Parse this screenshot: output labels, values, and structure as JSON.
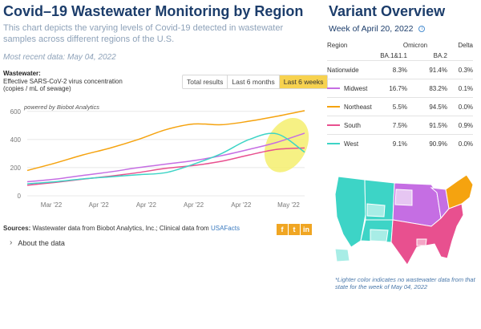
{
  "title": "Covid–19 Wastewater Monitoring by Region",
  "description": "This chart depicts the varying levels of Covid-19 detected in wastewater samples across different regions of the U.S.",
  "most_recent": "Most recent data: May 04, 2022",
  "wastewater_label": {
    "heading": "Wastewater:",
    "line1": "Effective SARS-CoV-2 virus concentration",
    "line2": "(copies / mL of sewage)"
  },
  "range_buttons": {
    "total": "Total results",
    "six_months": "Last 6 months",
    "six_weeks": "Last 6 weeks",
    "active": "six_weeks"
  },
  "chart_data": {
    "type": "line",
    "annotation": "powered by Biobot Analytics",
    "ylim": [
      0,
      650
    ],
    "yticks": [
      0,
      200,
      400,
      600
    ],
    "xtick_labels": [
      "Mar '22",
      "Apr '22",
      "Apr '22",
      "Apr '22",
      "Apr '22",
      "May '22"
    ],
    "grid": "horizontal",
    "x": [
      0,
      0.1,
      0.2,
      0.3,
      0.4,
      0.5,
      0.6,
      0.7,
      0.8,
      0.9,
      1.0
    ],
    "series": [
      {
        "color": "#f5a30f",
        "values": [
          180,
          232,
          290,
          340,
          400,
          470,
          510,
          505,
          530,
          565,
          605
        ]
      },
      {
        "color": "#c56ee3",
        "values": [
          100,
          118,
          145,
          170,
          200,
          225,
          250,
          285,
          330,
          380,
          445
        ]
      },
      {
        "color": "#e8508f",
        "values": [
          75,
          95,
          118,
          140,
          165,
          195,
          215,
          245,
          290,
          330,
          340
        ]
      },
      {
        "color": "#3dd4c6",
        "values": [
          85,
          100,
          120,
          135,
          150,
          165,
          225,
          300,
          400,
          440,
          310
        ]
      }
    ],
    "highlight": {
      "color": "#f5ef6e",
      "x_range": [
        0.875,
        0.995
      ]
    }
  },
  "sources": {
    "prefix": "Sources:",
    "text": "Wastewater data from Biobot Analytics, Inc.; Clinical data from",
    "link": "USAFacts"
  },
  "social": {
    "facebook": "f",
    "twitter": "t",
    "linkedin": "in"
  },
  "about": {
    "chevron": "›",
    "label": "About the data"
  },
  "variant": {
    "title": "Variant Overview",
    "week": "Week of April 20, 2022",
    "info": "i",
    "headers": {
      "region": "Region",
      "omicron": "Omicron",
      "ba1": "BA.1&1.1",
      "ba2": "BA.2",
      "delta": "Delta"
    },
    "rows": [
      {
        "region": "Nationwide",
        "color": "",
        "ba1": "8.3%",
        "ba2": "91.4%",
        "delta": "0.3%"
      },
      {
        "region": "Midwest",
        "color": "#c56ee3",
        "ba1": "16.7%",
        "ba2": "83.2%",
        "delta": "0.1%"
      },
      {
        "region": "Northeast",
        "color": "#f5a30f",
        "ba1": "5.5%",
        "ba2": "94.5%",
        "delta": "0.0%"
      },
      {
        "region": "South",
        "color": "#e8508f",
        "ba1": "7.5%",
        "ba2": "91.5%",
        "delta": "0.9%"
      },
      {
        "region": "West",
        "color": "#3dd4c6",
        "ba1": "9.1%",
        "ba2": "90.9%",
        "delta": "0.0%"
      }
    ]
  },
  "footnote": "*Lighter color indicates no wastewater data from that state for the week of May 04, 2022"
}
